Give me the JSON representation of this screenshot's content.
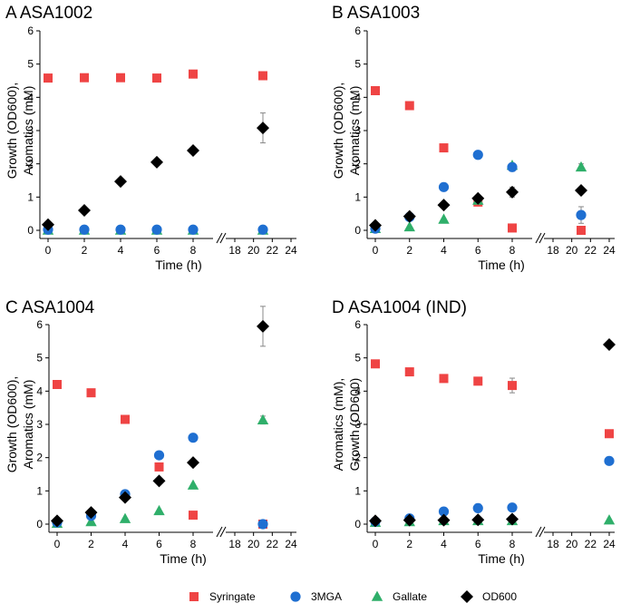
{
  "figure": {
    "legend": [
      {
        "key": "syringate",
        "label": "Syringate",
        "color": "#EF4444",
        "marker": "square"
      },
      {
        "key": "mga",
        "label": "3MGA",
        "color": "#1F6FD1",
        "marker": "circle"
      },
      {
        "key": "gallate",
        "label": "Gallate",
        "color": "#2FAF6A",
        "marker": "triangle"
      },
      {
        "key": "od",
        "label": "OD600",
        "color": "#000000",
        "marker": "diamond"
      }
    ]
  },
  "chart_data": [
    {
      "type": "scatter",
      "panel": "A",
      "title": "ASA1002",
      "xlabel": "Time (h)",
      "ylabel_lines": [
        "Growth (OD600),",
        "Aromatics (mM)"
      ],
      "ylim": [
        0,
        6
      ],
      "yticks": [
        "0",
        "1",
        "2",
        "3",
        "4",
        "5",
        "6"
      ],
      "x_segments": [
        [
          0,
          9
        ],
        [
          17.5,
          24.6
        ]
      ],
      "xticks": [
        "0",
        "2",
        "4",
        "6",
        "8",
        "18",
        "20",
        "22",
        "24"
      ],
      "series": [
        {
          "key": "syringate",
          "x": [
            0,
            2,
            4,
            6,
            8,
            21
          ],
          "y": [
            4.58,
            4.59,
            4.59,
            4.58,
            4.7,
            4.65
          ]
        },
        {
          "key": "mga",
          "x": [
            0,
            2,
            4,
            6,
            8,
            21
          ],
          "y": [
            0.02,
            0.02,
            0.02,
            0.02,
            0.02,
            0.02
          ]
        },
        {
          "key": "gallate",
          "x": [
            0,
            2,
            4,
            6,
            8,
            21
          ],
          "y": [
            0.0,
            0.0,
            0.0,
            0.0,
            0.0,
            0.0
          ]
        },
        {
          "key": "od",
          "x": [
            0,
            2,
            4,
            6,
            8,
            21
          ],
          "y": [
            0.17,
            0.6,
            1.47,
            2.05,
            2.4,
            3.08
          ],
          "err": [
            0,
            0,
            0,
            0,
            0,
            0.45
          ]
        }
      ]
    },
    {
      "type": "scatter",
      "panel": "B",
      "title": "ASA1003",
      "xlabel": "Time (h)",
      "ylabel_lines": [
        "Growth (OD600),",
        "Aromatics (mM)"
      ],
      "ylim": [
        0,
        6
      ],
      "yticks": [
        "0",
        "1",
        "2",
        "3",
        "4",
        "5",
        "6"
      ],
      "x_segments": [
        [
          0,
          9
        ],
        [
          17.5,
          24.6
        ]
      ],
      "xticks": [
        "0",
        "2",
        "4",
        "6",
        "8",
        "18",
        "20",
        "22",
        "24"
      ],
      "series": [
        {
          "key": "syringate",
          "x": [
            0,
            2,
            4,
            6,
            8,
            21
          ],
          "y": [
            4.2,
            3.75,
            2.48,
            0.85,
            0.07,
            0.0
          ]
        },
        {
          "key": "mga",
          "x": [
            0,
            2,
            4,
            6,
            8,
            21
          ],
          "y": [
            0.05,
            0.4,
            1.3,
            2.27,
            1.9,
            0.46
          ],
          "err": [
            0,
            0,
            0,
            0,
            0.12,
            0.25
          ]
        },
        {
          "key": "gallate",
          "x": [
            0,
            2,
            4,
            6,
            8,
            21
          ],
          "y": [
            0.05,
            0.1,
            0.33,
            0.9,
            1.95,
            1.9
          ],
          "err": [
            0,
            0,
            0,
            0,
            0,
            0.1
          ]
        },
        {
          "key": "od",
          "x": [
            0,
            2,
            4,
            6,
            8,
            21
          ],
          "y": [
            0.15,
            0.42,
            0.76,
            0.96,
            1.15,
            1.2
          ],
          "err": [
            0,
            0,
            0,
            0,
            0.15,
            0
          ]
        }
      ]
    },
    {
      "type": "scatter",
      "panel": "C",
      "title": "ASA1004",
      "xlabel": "Time (h)",
      "ylabel_lines": [
        "Growth (OD600),",
        "Aromatics (mM)"
      ],
      "ylim": [
        0,
        6
      ],
      "yticks": [
        "0",
        "1",
        "2",
        "3",
        "4",
        "5",
        "6"
      ],
      "x_segments": [
        [
          0,
          9
        ],
        [
          17.5,
          24.6
        ]
      ],
      "xticks": [
        "0",
        "2",
        "4",
        "6",
        "8",
        "18",
        "20",
        "22",
        "24"
      ],
      "series": [
        {
          "key": "syringate",
          "x": [
            0,
            2,
            4,
            6,
            8,
            21
          ],
          "y": [
            4.2,
            3.95,
            3.15,
            1.72,
            0.27,
            0.0
          ]
        },
        {
          "key": "mga",
          "x": [
            0,
            2,
            4,
            6,
            8,
            21
          ],
          "y": [
            0.05,
            0.25,
            0.9,
            2.07,
            2.6,
            0.0
          ]
        },
        {
          "key": "gallate",
          "x": [
            0,
            2,
            4,
            6,
            8,
            21
          ],
          "y": [
            0.02,
            0.07,
            0.16,
            0.4,
            1.17,
            3.13
          ],
          "err": [
            0,
            0,
            0,
            0,
            0,
            0.12
          ]
        },
        {
          "key": "od",
          "x": [
            0,
            2,
            4,
            6,
            8,
            21
          ],
          "y": [
            0.1,
            0.35,
            0.8,
            1.3,
            1.85,
            5.95
          ],
          "err": [
            0,
            0,
            0,
            0,
            0,
            0.6
          ]
        }
      ]
    },
    {
      "type": "scatter",
      "panel": "D",
      "title": "ASA1004 (IND)",
      "xlabel": "Time (h)",
      "ylabel_lines": [
        "Aromatics (mM),",
        "Growth (OD600)"
      ],
      "ylim": [
        0,
        6
      ],
      "yticks": [
        "0",
        "1",
        "2",
        "3",
        "4",
        "5",
        "6"
      ],
      "x_segments": [
        [
          0,
          9
        ],
        [
          17.5,
          24.6
        ]
      ],
      "xticks": [
        "0",
        "2",
        "4",
        "6",
        "8",
        "18",
        "20",
        "22",
        "24"
      ],
      "series": [
        {
          "key": "syringate",
          "x": [
            0,
            2,
            4,
            6,
            8,
            24
          ],
          "y": [
            4.82,
            4.58,
            4.38,
            4.3,
            4.17,
            2.72
          ],
          "err": [
            0,
            0,
            0,
            0,
            0.22,
            0
          ]
        },
        {
          "key": "mga",
          "x": [
            0,
            2,
            4,
            6,
            8,
            24
          ],
          "y": [
            0.08,
            0.17,
            0.38,
            0.48,
            0.5,
            1.9
          ]
        },
        {
          "key": "gallate",
          "x": [
            0,
            2,
            4,
            6,
            8,
            24
          ],
          "y": [
            0.05,
            0.07,
            0.1,
            0.1,
            0.1,
            0.12
          ]
        },
        {
          "key": "od",
          "x": [
            0,
            2,
            4,
            6,
            8,
            24
          ],
          "y": [
            0.1,
            0.12,
            0.12,
            0.13,
            0.15,
            5.4
          ]
        }
      ]
    }
  ]
}
